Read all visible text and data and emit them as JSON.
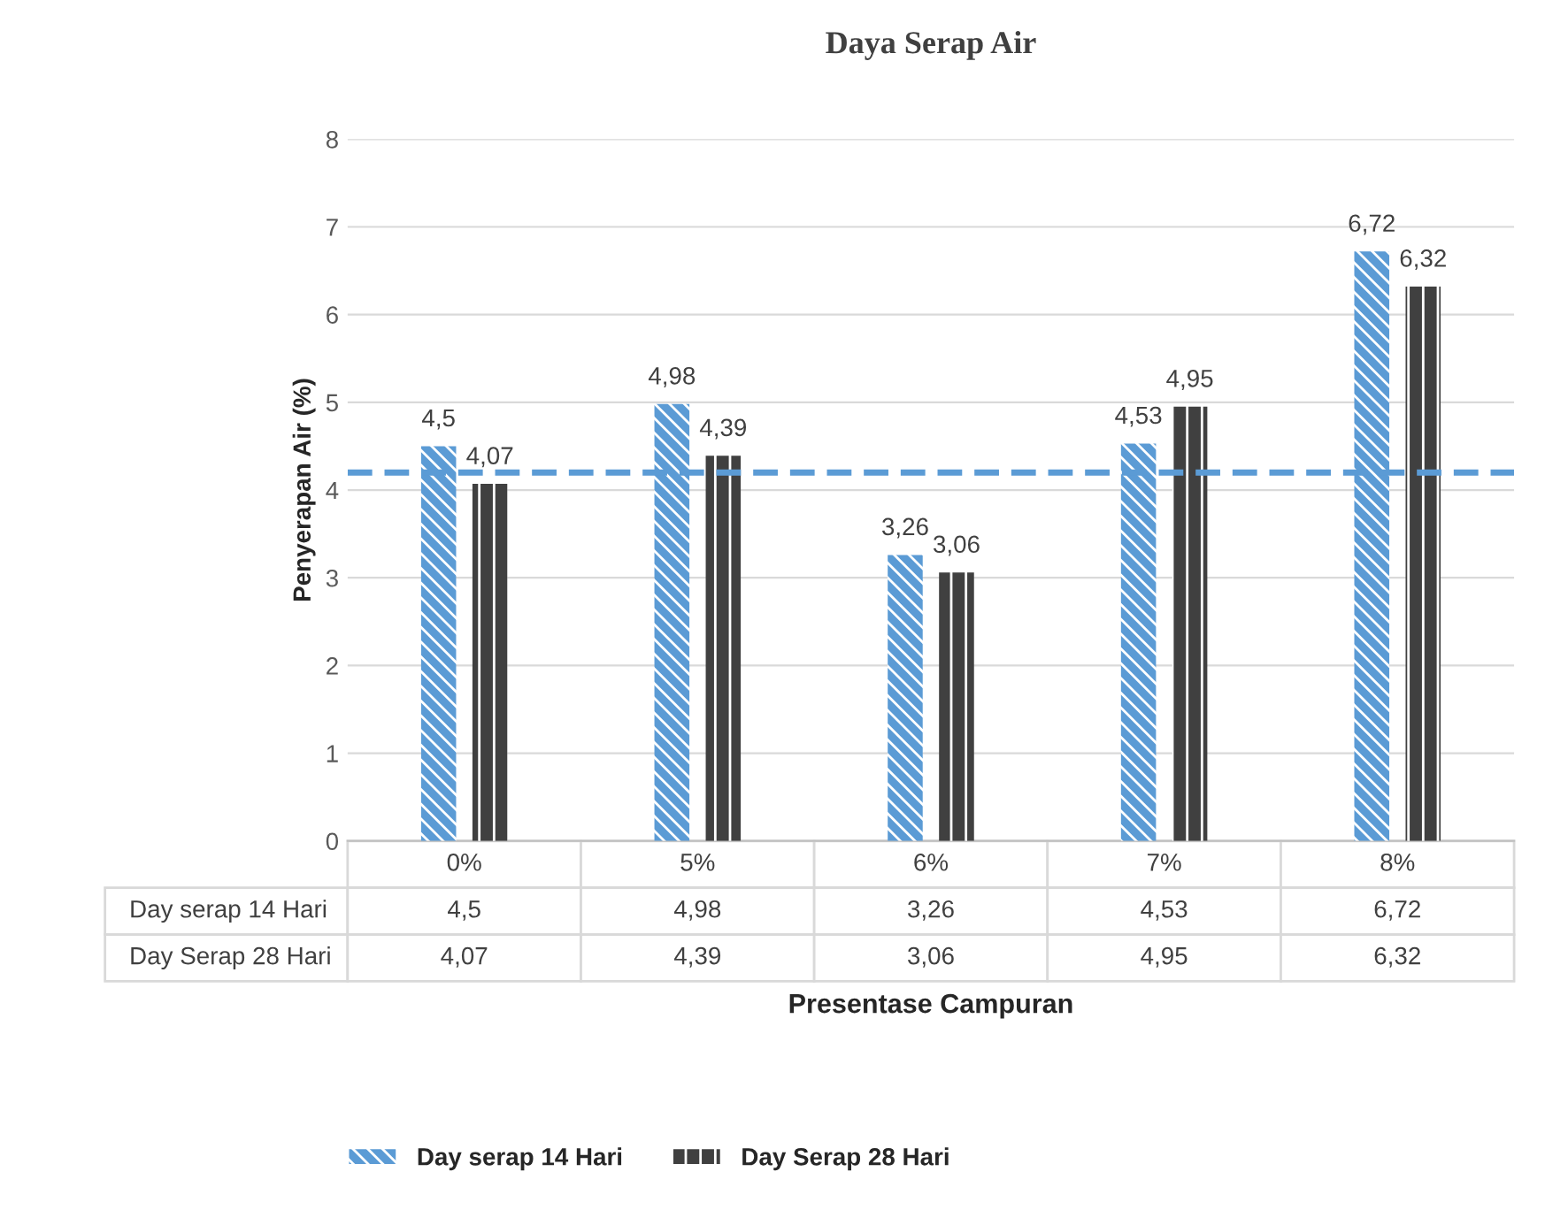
{
  "chart_data": {
    "type": "bar",
    "title": "Daya Serap Air",
    "xlabel": "Presentase Campuran",
    "ylabel": "Penyerapan Air (%)",
    "categories": [
      "0%",
      "5%",
      "6%",
      "7%",
      "8%"
    ],
    "series": [
      {
        "name": "Day serap 14 Hari",
        "color": "#5b9bd5",
        "values": [
          4.5,
          4.98,
          3.26,
          4.53,
          6.72
        ],
        "value_labels": [
          "4,5",
          "4,98",
          "3,26",
          "4,53",
          "6,72"
        ]
      },
      {
        "name": "Day Serap 28 Hari",
        "color": "#404040",
        "values": [
          4.07,
          4.39,
          3.06,
          4.95,
          6.32
        ],
        "value_labels": [
          "4,07",
          "4,39",
          "3,06",
          "4,95",
          "6,32"
        ]
      }
    ],
    "ylim": [
      0,
      8
    ],
    "yticks": [
      0,
      1,
      2,
      3,
      4,
      5,
      6,
      7,
      8
    ],
    "grid": "y",
    "legend": "bottom",
    "ref_lines": [
      {
        "axis": "y",
        "value": 4.2,
        "color": "#5b9bd5",
        "line_style": "dashed"
      }
    ]
  }
}
